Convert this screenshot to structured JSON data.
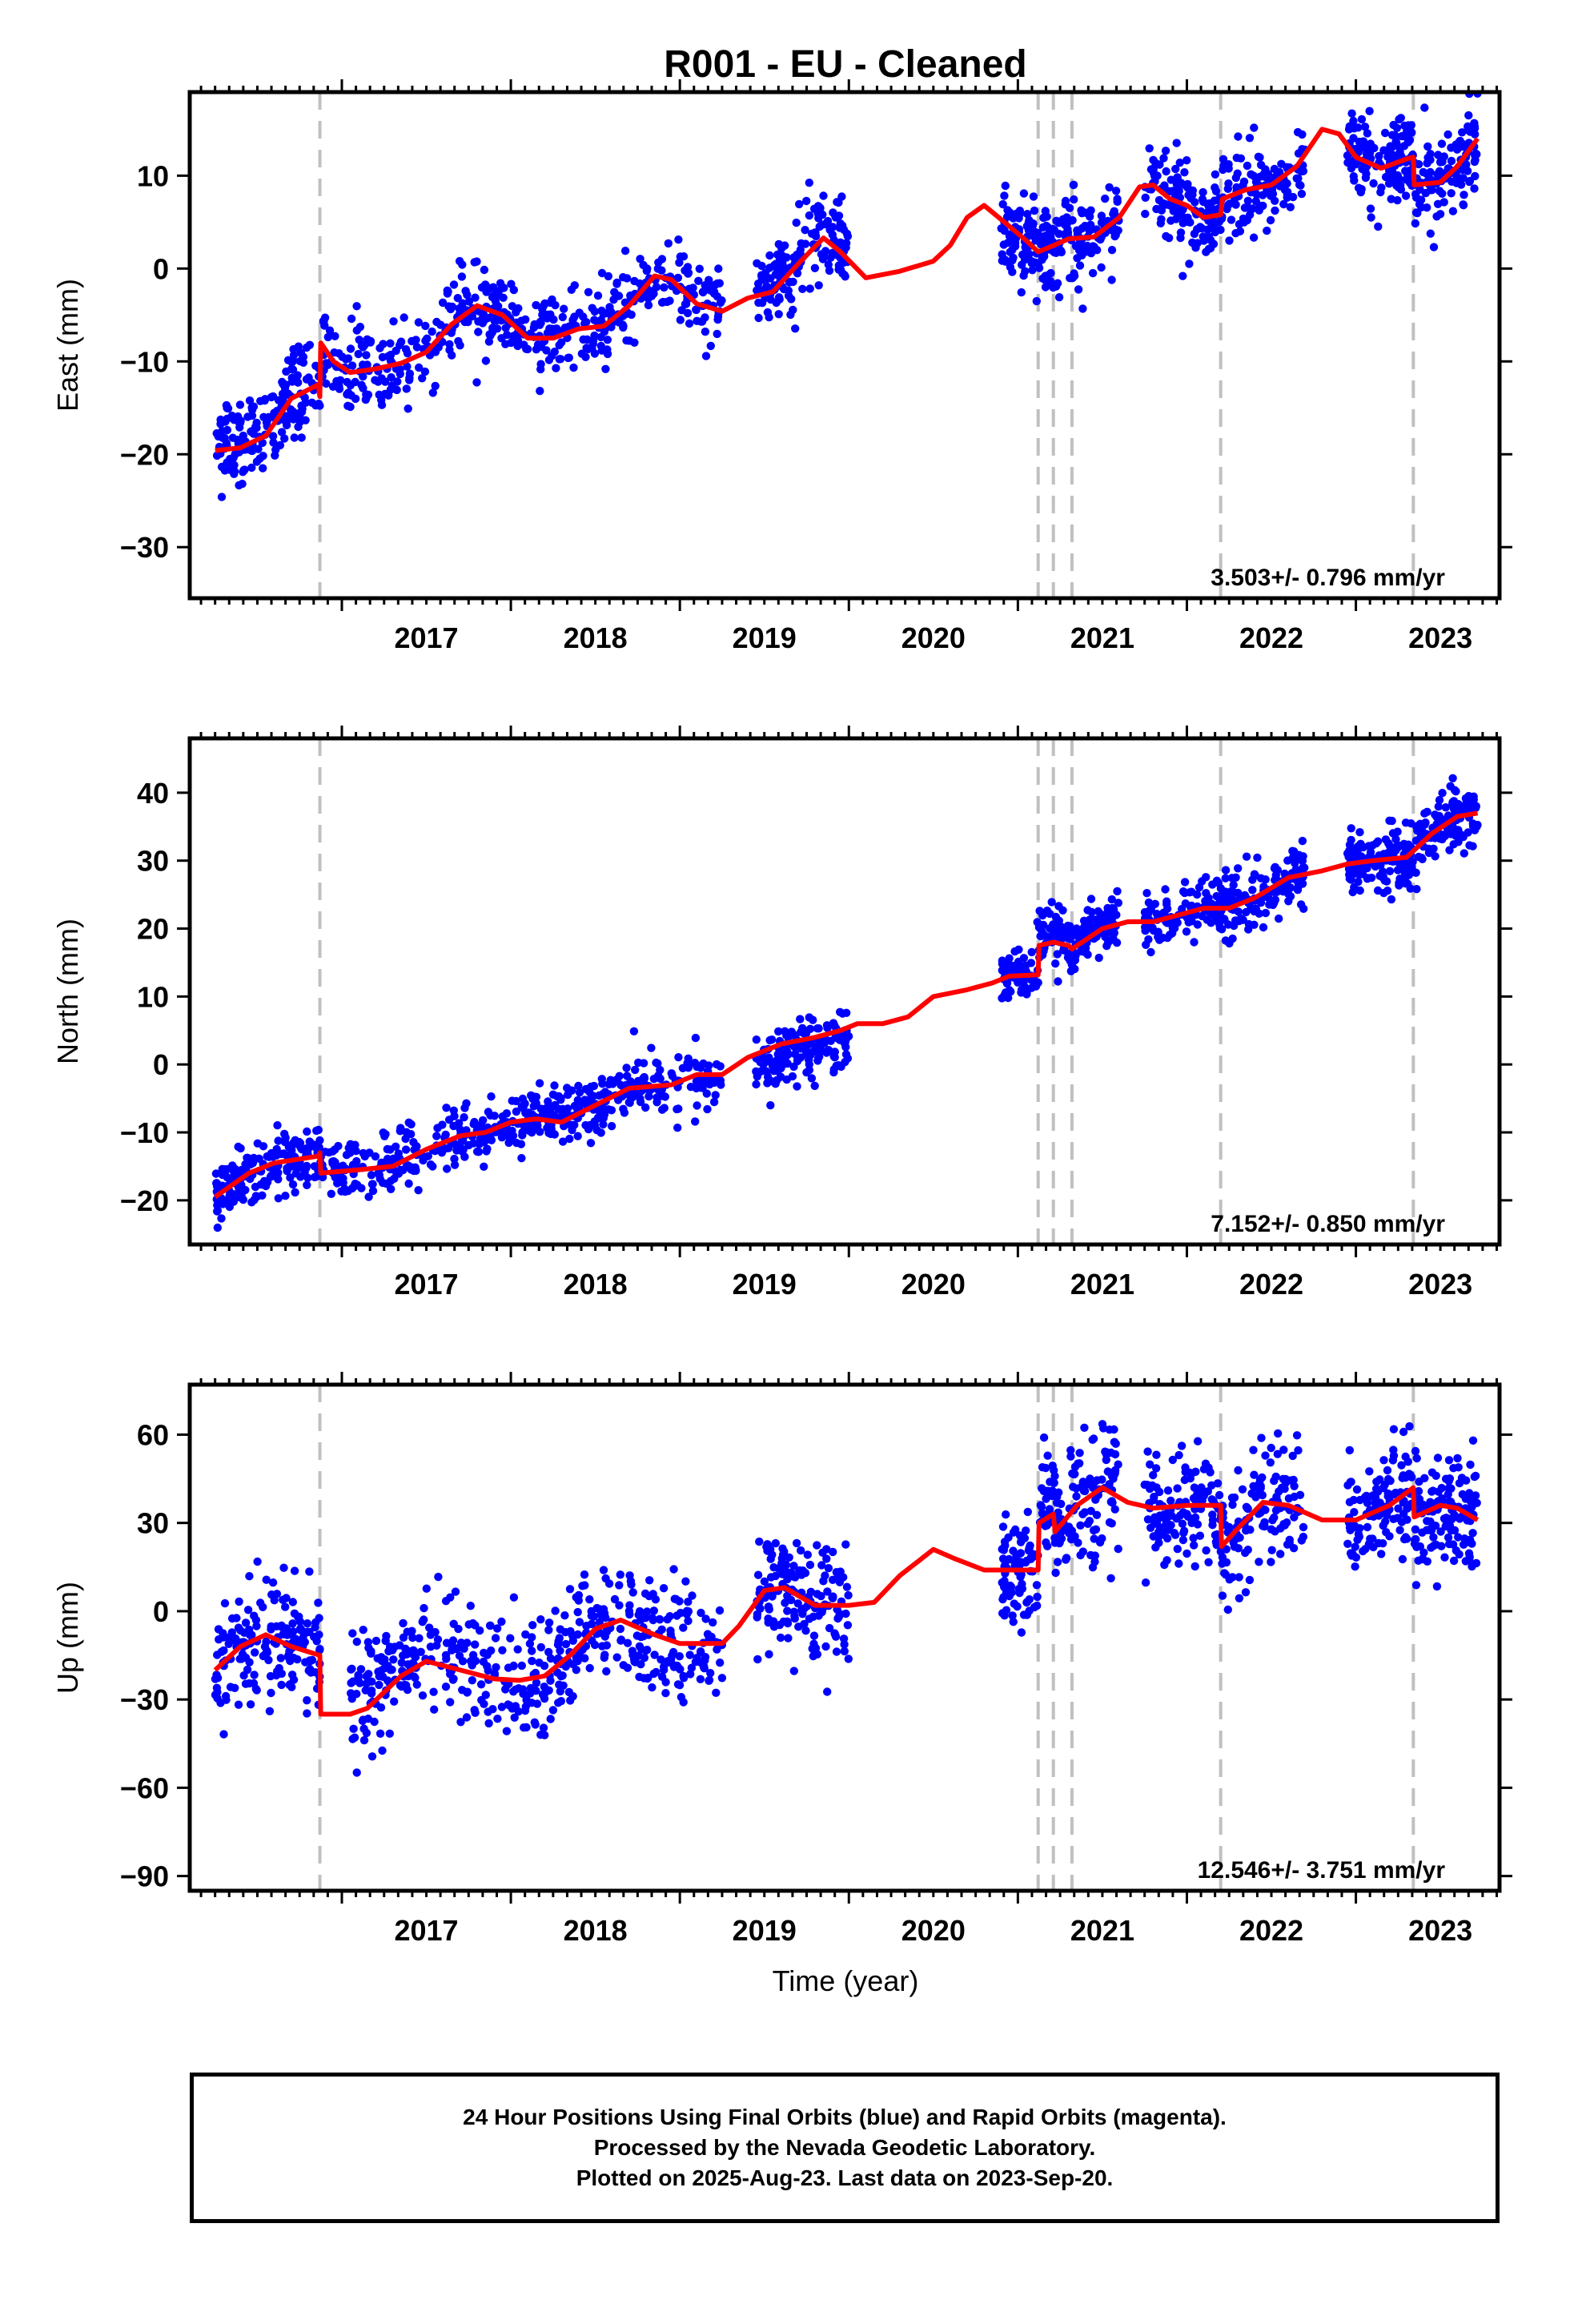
{
  "title": "R001  - EU - Cleaned",
  "xlabel": "Time (year)",
  "footer": {
    "line1": "24 Hour Positions Using Final Orbits (blue) and Rapid Orbits (magenta).",
    "line2": "Processed by the Nevada Geodetic Laboratory.",
    "line3": "Plotted on 2025-Aug-23. Last data on 2023-Sep-20."
  },
  "colors": {
    "data": "#0000ff",
    "model": "#ff0000",
    "steps": "#c0c0c0",
    "frame": "#000000"
  },
  "chart_data": [
    {
      "type": "scatter",
      "component": "East",
      "ylabel": "East (mm)",
      "rate": "3.503+/- 0.796 mm/yr",
      "xlim": [
        2016.1,
        2023.85
      ],
      "ylim": [
        -35.5,
        19
      ],
      "yticks": [
        10,
        0,
        -10,
        -20,
        -30
      ],
      "xticks": [
        2017,
        2018,
        2019,
        2020,
        2021,
        2022,
        2023
      ],
      "step_epochs": [
        2016.87,
        2021.12,
        2021.21,
        2021.32,
        2022.2,
        2023.34
      ],
      "segments": [
        {
          "x0": 2016.25,
          "x1": 2016.87,
          "mid": 0.5,
          "n": 180
        },
        {
          "x0": 2016.87,
          "x1": 2017.8,
          "mid": 0.2,
          "n": 180
        },
        {
          "x0": 2017.8,
          "x1": 2019.25,
          "mid": 0.0,
          "n": 320
        },
        {
          "x0": 2019.45,
          "x1": 2020.0,
          "mid": 0.3,
          "n": 160
        },
        {
          "x0": 2020.9,
          "x1": 2021.6,
          "mid": 0.0,
          "n": 230
        },
        {
          "x0": 2021.75,
          "x1": 2022.7,
          "mid": 0.0,
          "n": 260
        },
        {
          "x0": 2022.95,
          "x1": 2023.72,
          "mid": 0.0,
          "n": 260
        }
      ],
      "scatter_sd": 2.3,
      "model_curve": [
        [
          2016.25,
          -19.6
        ],
        [
          2016.4,
          -19.3
        ],
        [
          2016.55,
          -18.0
        ],
        [
          2016.7,
          -14.0
        ],
        [
          2016.86,
          -12.5
        ],
        [
          2016.87,
          -13.8
        ],
        [
          2016.875,
          -8.0
        ],
        [
          2016.95,
          -10.0
        ],
        [
          2017.05,
          -11.2
        ],
        [
          2017.2,
          -10.8
        ],
        [
          2017.35,
          -10.2
        ],
        [
          2017.5,
          -9.0
        ],
        [
          2017.65,
          -6.0
        ],
        [
          2017.8,
          -4.0
        ],
        [
          2017.95,
          -5.0
        ],
        [
          2018.1,
          -7.5
        ],
        [
          2018.25,
          -7.5
        ],
        [
          2018.4,
          -6.5
        ],
        [
          2018.55,
          -6.2
        ],
        [
          2018.7,
          -4.0
        ],
        [
          2018.85,
          -0.8
        ],
        [
          2018.95,
          -1.2
        ],
        [
          2019.1,
          -3.8
        ],
        [
          2019.25,
          -4.6
        ],
        [
          2019.4,
          -3.2
        ],
        [
          2019.55,
          -2.5
        ],
        [
          2019.7,
          0.5
        ],
        [
          2019.85,
          3.3
        ],
        [
          2019.95,
          1.8
        ],
        [
          2020.1,
          -1.0
        ],
        [
          2020.3,
          -0.3
        ],
        [
          2020.5,
          0.8
        ],
        [
          2020.6,
          2.5
        ],
        [
          2020.7,
          5.5
        ],
        [
          2020.8,
          6.8
        ],
        [
          2020.92,
          5.0
        ],
        [
          2021.05,
          3.0
        ],
        [
          2021.12,
          1.8
        ],
        [
          2021.2,
          2.4
        ],
        [
          2021.3,
          3.2
        ],
        [
          2021.45,
          3.4
        ],
        [
          2021.6,
          5.5
        ],
        [
          2021.72,
          8.8
        ],
        [
          2021.8,
          9.0
        ],
        [
          2021.9,
          7.5
        ],
        [
          2022.0,
          6.8
        ],
        [
          2022.1,
          5.5
        ],
        [
          2022.2,
          5.8
        ],
        [
          2022.21,
          7.5
        ],
        [
          2022.35,
          8.5
        ],
        [
          2022.5,
          9.0
        ],
        [
          2022.65,
          11.0
        ],
        [
          2022.8,
          15.0
        ],
        [
          2022.9,
          14.5
        ],
        [
          2023.0,
          12.0
        ],
        [
          2023.15,
          10.8
        ],
        [
          2023.3,
          11.8
        ],
        [
          2023.34,
          12.0
        ],
        [
          2023.345,
          9.0
        ],
        [
          2023.5,
          9.3
        ],
        [
          2023.6,
          11.0
        ],
        [
          2023.72,
          14.0
        ]
      ]
    },
    {
      "type": "scatter",
      "component": "North",
      "ylabel": "North (mm)",
      "rate": "7.152+/- 0.850 mm/yr",
      "xlim": [
        2016.1,
        2023.85
      ],
      "ylim": [
        -26.5,
        48
      ],
      "yticks": [
        40,
        30,
        20,
        10,
        0,
        -10,
        -20
      ],
      "xticks": [
        2017,
        2018,
        2019,
        2020,
        2021,
        2022,
        2023
      ],
      "step_epochs": [
        2016.87,
        2021.12,
        2021.21,
        2021.32,
        2022.2,
        2023.34
      ],
      "segments": [
        {
          "x0": 2016.25,
          "x1": 2016.87,
          "mid": 0.0,
          "n": 180
        },
        {
          "x0": 2016.87,
          "x1": 2017.8,
          "mid": 0.0,
          "n": 180
        },
        {
          "x0": 2017.8,
          "x1": 2019.25,
          "mid": 0.0,
          "n": 320
        },
        {
          "x0": 2019.45,
          "x1": 2020.0,
          "mid": -1.5,
          "n": 160
        },
        {
          "x0": 2020.9,
          "x1": 2021.6,
          "mid": 0.5,
          "n": 230
        },
        {
          "x0": 2021.75,
          "x1": 2022.7,
          "mid": 0.0,
          "n": 260
        },
        {
          "x0": 2022.95,
          "x1": 2023.72,
          "mid": 0.0,
          "n": 260
        }
      ],
      "scatter_sd": 2.2,
      "model_curve": [
        [
          2016.25,
          -19.5
        ],
        [
          2016.45,
          -16.0
        ],
        [
          2016.6,
          -14.5
        ],
        [
          2016.86,
          -13.5
        ],
        [
          2016.87,
          -13.0
        ],
        [
          2016.875,
          -16.0
        ],
        [
          2017.1,
          -15.5
        ],
        [
          2017.3,
          -15.0
        ],
        [
          2017.5,
          -12.5
        ],
        [
          2017.7,
          -10.5
        ],
        [
          2017.85,
          -10.0
        ],
        [
          2018.0,
          -8.5
        ],
        [
          2018.15,
          -8.0
        ],
        [
          2018.3,
          -8.5
        ],
        [
          2018.5,
          -6.0
        ],
        [
          2018.7,
          -3.5
        ],
        [
          2018.95,
          -3.0
        ],
        [
          2019.1,
          -1.5
        ],
        [
          2019.25,
          -1.5
        ],
        [
          2019.4,
          1.0
        ],
        [
          2019.6,
          3.0
        ],
        [
          2019.8,
          4.0
        ],
        [
          2019.95,
          5.0
        ],
        [
          2020.05,
          6.0
        ],
        [
          2020.2,
          6.0
        ],
        [
          2020.35,
          7.0
        ],
        [
          2020.5,
          10.0
        ],
        [
          2020.7,
          11.0
        ],
        [
          2020.85,
          12.0
        ],
        [
          2020.95,
          13.0
        ],
        [
          2021.12,
          13.2
        ],
        [
          2021.125,
          17.5
        ],
        [
          2021.21,
          18.0
        ],
        [
          2021.3,
          17.5
        ],
        [
          2021.32,
          17.0
        ],
        [
          2021.5,
          20.0
        ],
        [
          2021.65,
          21.0
        ],
        [
          2021.8,
          21.0
        ],
        [
          2021.95,
          22.0
        ],
        [
          2022.1,
          23.0
        ],
        [
          2022.25,
          23.0
        ],
        [
          2022.4,
          24.5
        ],
        [
          2022.6,
          27.5
        ],
        [
          2022.8,
          28.5
        ],
        [
          2022.95,
          29.5
        ],
        [
          2023.1,
          30.0
        ],
        [
          2023.3,
          30.5
        ],
        [
          2023.45,
          34.0
        ],
        [
          2023.6,
          36.5
        ],
        [
          2023.72,
          37.0
        ]
      ]
    },
    {
      "type": "scatter",
      "component": "Up",
      "ylabel": "Up (mm)",
      "rate": "12.546+/- 3.751 mm/yr",
      "xlim": [
        2016.1,
        2023.85
      ],
      "ylim": [
        -95,
        77
      ],
      "yticks": [
        60,
        30,
        0,
        -30,
        -60,
        -90
      ],
      "xticks": [
        2017,
        2018,
        2019,
        2020,
        2021,
        2022,
        2023
      ],
      "step_epochs": [
        2016.87,
        2021.12,
        2021.21,
        2021.32,
        2022.2,
        2023.34
      ],
      "segments": [
        {
          "x0": 2016.25,
          "x1": 2016.87,
          "mid": 0.0,
          "n": 180
        },
        {
          "x0": 2017.05,
          "x1": 2017.8,
          "mid": 5.0,
          "n": 170
        },
        {
          "x0": 2017.8,
          "x1": 2019.25,
          "mid": 0.0,
          "n": 320
        },
        {
          "x0": 2019.45,
          "x1": 2020.0,
          "mid": 0.0,
          "n": 160
        },
        {
          "x0": 2020.9,
          "x1": 2021.6,
          "mid": 0.0,
          "n": 230
        },
        {
          "x0": 2021.75,
          "x1": 2022.7,
          "mid": 0.0,
          "n": 260
        },
        {
          "x0": 2022.95,
          "x1": 2023.72,
          "mid": 0.0,
          "n": 260
        }
      ],
      "scatter_sd": 10.0,
      "model_curve": [
        [
          2016.25,
          -20.0
        ],
        [
          2016.4,
          -12.0
        ],
        [
          2016.55,
          -8.0
        ],
        [
          2016.7,
          -12.0
        ],
        [
          2016.87,
          -15.0
        ],
        [
          2016.875,
          -35.0
        ],
        [
          2017.05,
          -35.0
        ],
        [
          2017.15,
          -33.0
        ],
        [
          2017.35,
          -22.0
        ],
        [
          2017.5,
          -17.0
        ],
        [
          2017.7,
          -20.0
        ],
        [
          2017.9,
          -23.0
        ],
        [
          2018.05,
          -23.5
        ],
        [
          2018.2,
          -22.0
        ],
        [
          2018.35,
          -15.0
        ],
        [
          2018.5,
          -6.0
        ],
        [
          2018.65,
          -3.0
        ],
        [
          2018.85,
          -8.0
        ],
        [
          2019.0,
          -11.0
        ],
        [
          2019.25,
          -11.0
        ],
        [
          2019.35,
          -5.0
        ],
        [
          2019.5,
          7.0
        ],
        [
          2019.62,
          8.0
        ],
        [
          2019.8,
          2.0
        ],
        [
          2020.0,
          2.0
        ],
        [
          2020.15,
          3.0
        ],
        [
          2020.3,
          12.0
        ],
        [
          2020.5,
          21.0
        ],
        [
          2020.62,
          18.0
        ],
        [
          2020.8,
          14.0
        ],
        [
          2021.12,
          14.0
        ],
        [
          2021.125,
          30.0
        ],
        [
          2021.21,
          33.0
        ],
        [
          2021.22,
          27.0
        ],
        [
          2021.35,
          36.0
        ],
        [
          2021.5,
          42.0
        ],
        [
          2021.65,
          37.0
        ],
        [
          2021.8,
          35.0
        ],
        [
          2022.0,
          36.0
        ],
        [
          2022.2,
          36.0
        ],
        [
          2022.205,
          22.0
        ],
        [
          2022.3,
          28.0
        ],
        [
          2022.45,
          37.0
        ],
        [
          2022.6,
          36.0
        ],
        [
          2022.8,
          31.0
        ],
        [
          2023.0,
          31.0
        ],
        [
          2023.2,
          36.0
        ],
        [
          2023.34,
          42.0
        ],
        [
          2023.345,
          32.0
        ],
        [
          2023.5,
          36.0
        ],
        [
          2023.6,
          35.0
        ],
        [
          2023.72,
          31.0
        ]
      ]
    }
  ]
}
